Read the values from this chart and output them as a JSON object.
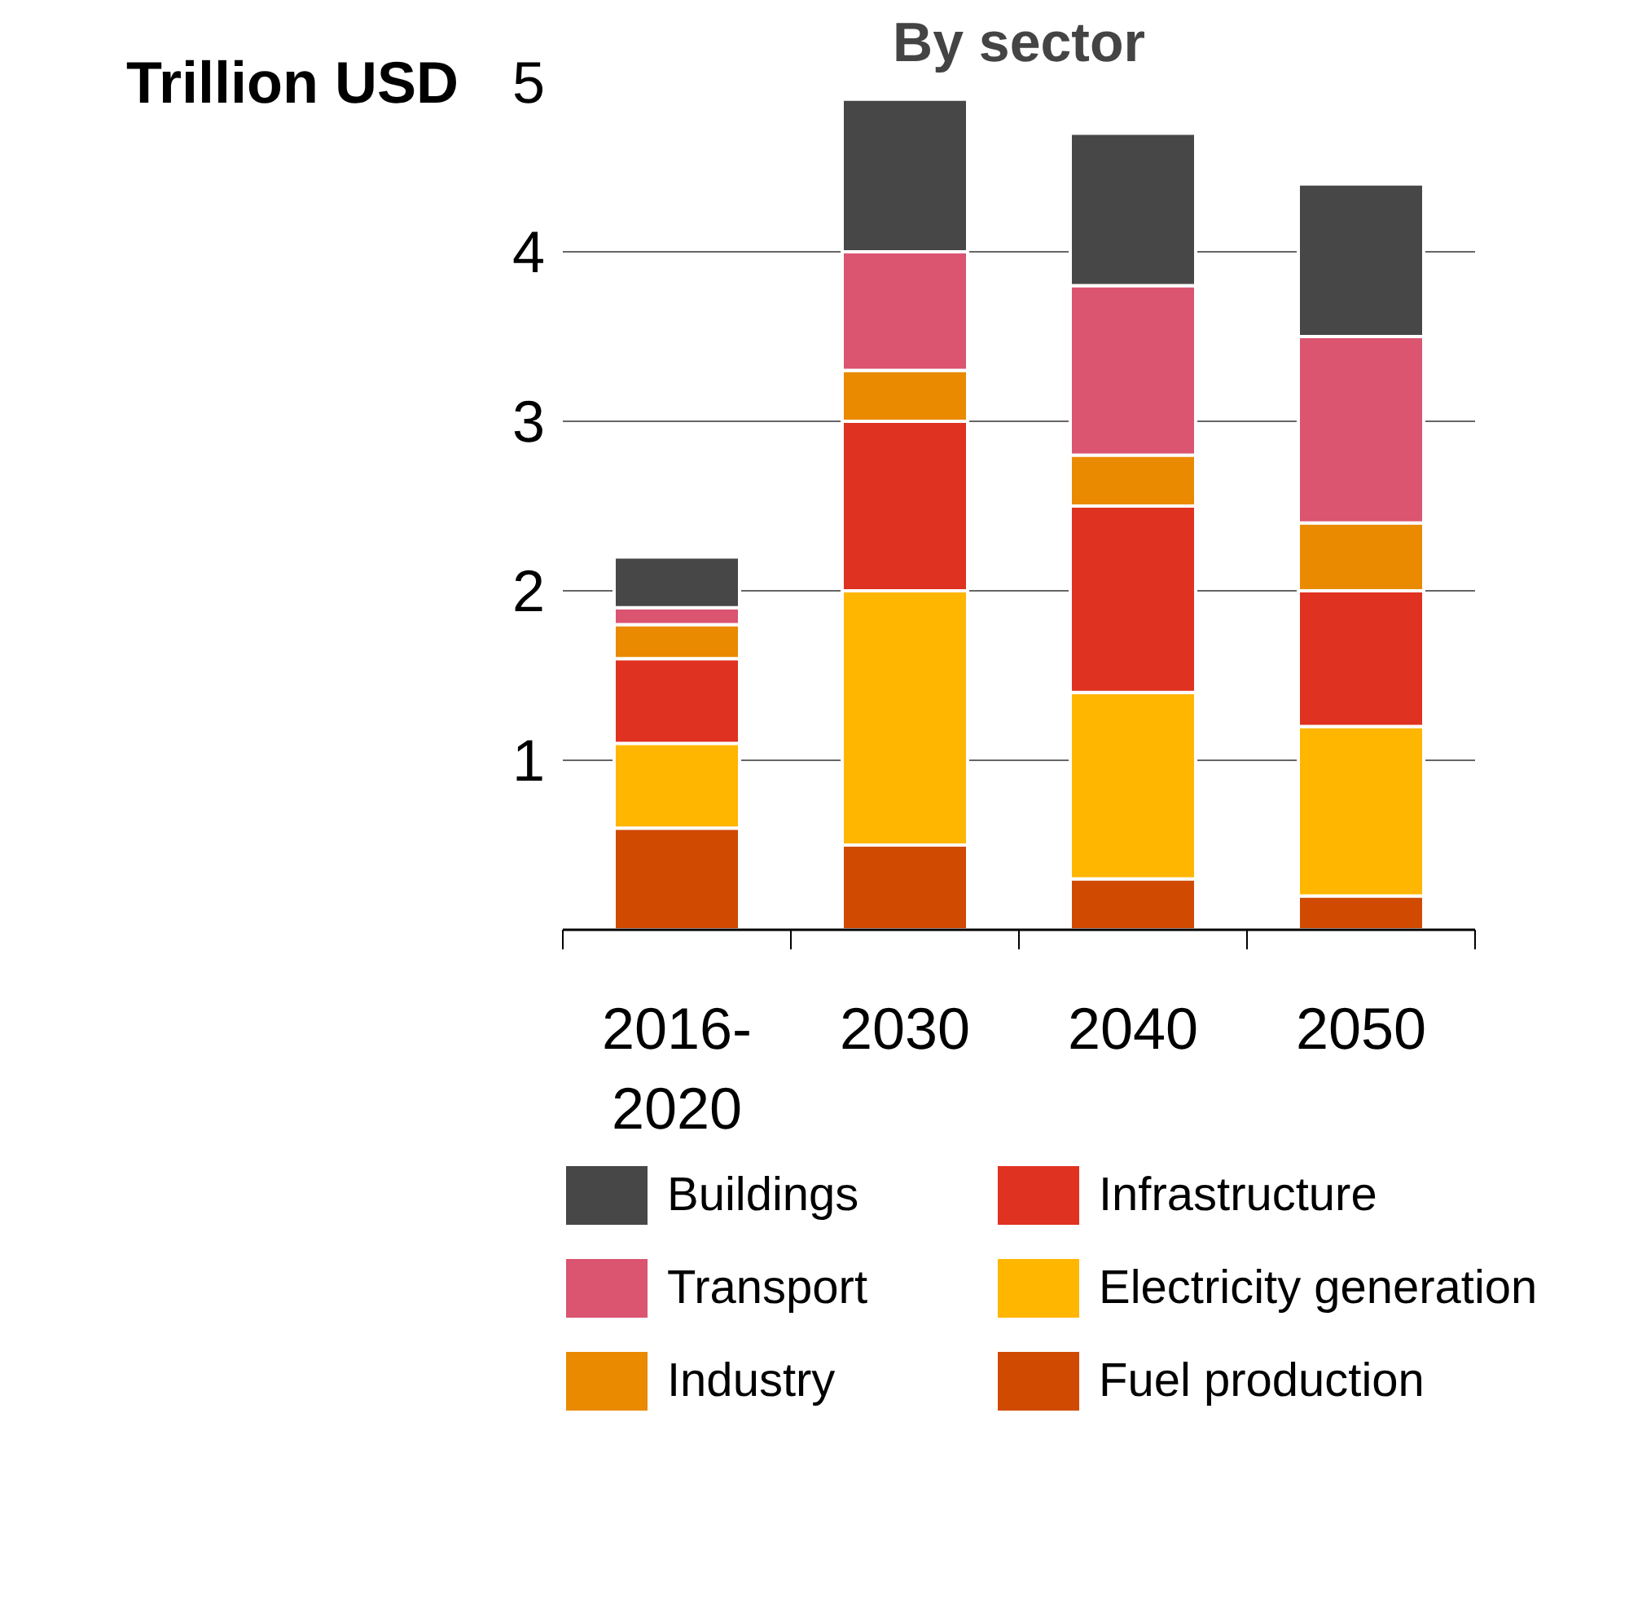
{
  "chart_data": {
    "type": "bar",
    "title": "By sector",
    "ylabel": "Trillion USD",
    "stacked": true,
    "categories": [
      "2016-\n2020",
      "2030",
      "2040",
      "2050"
    ],
    "series": [
      {
        "name": "Fuel production",
        "color": "#d04a02",
        "values": [
          0.6,
          0.5,
          0.3,
          0.2
        ]
      },
      {
        "name": "Electricity generation",
        "color": "#ffb600",
        "values": [
          0.5,
          1.5,
          1.1,
          1.0
        ]
      },
      {
        "name": "Infrastructure",
        "color": "#e03220",
        "values": [
          0.5,
          1.0,
          1.1,
          0.8
        ]
      },
      {
        "name": "Industry",
        "color": "#e98a00",
        "values": [
          0.2,
          0.3,
          0.3,
          0.4
        ]
      },
      {
        "name": "Transport",
        "color": "#db5470",
        "values": [
          0.1,
          0.7,
          1.0,
          1.1
        ]
      },
      {
        "name": "Buildings",
        "color": "#474747",
        "values": [
          0.3,
          0.9,
          0.9,
          0.9
        ]
      }
    ],
    "ylim": [
      0,
      5
    ],
    "yticks": [
      1,
      2,
      3,
      4,
      5
    ],
    "grid": "y",
    "legend": "bottom"
  }
}
